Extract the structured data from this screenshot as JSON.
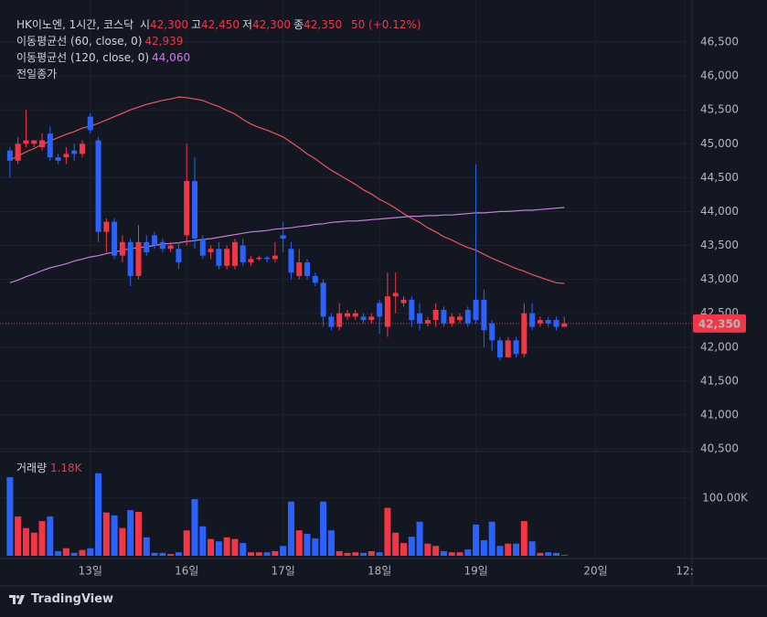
{
  "chart_data": {
    "type": "candlestick",
    "title": "HK이노엔, 1시간, 코스닥",
    "readout": [
      {
        "label": "시",
        "text": "42,300"
      },
      {
        "label": "고",
        "text": "42,450"
      },
      {
        "label": "저",
        "text": "42,300"
      },
      {
        "label": "종",
        "text": "42,350"
      }
    ],
    "change": "50 (+0.12%)",
    "open": [
      44900,
      44750,
      45000,
      45000,
      44950,
      45150,
      44800,
      44800,
      44900,
      44850,
      45400,
      45050,
      43700,
      43850,
      43350,
      43550,
      43050,
      43550,
      43650,
      43550,
      43450,
      43450,
      43650,
      44450,
      43600,
      43400,
      43450,
      43200,
      43200,
      43500,
      43250,
      43300,
      43320,
      43300,
      43650,
      43450,
      43050,
      43250,
      43050,
      42950,
      42450,
      42300,
      42450,
      42450,
      42450,
      42400,
      42650,
      42300,
      42750,
      42650,
      42700,
      42500,
      42350,
      42400,
      42550,
      42350,
      42400,
      42550,
      42700,
      42700,
      42350,
      42100,
      41850,
      42100,
      41900,
      42500,
      42350,
      42400,
      42400,
      42300
    ],
    "high": [
      44950,
      45100,
      45500,
      45050,
      45150,
      45250,
      44850,
      44950,
      45000,
      45050,
      45450,
      45100,
      43900,
      43900,
      43650,
      43600,
      43800,
      43650,
      43700,
      43600,
      43550,
      43550,
      45000,
      44800,
      43650,
      43500,
      43550,
      43500,
      43600,
      43600,
      43350,
      43350,
      43350,
      43550,
      43850,
      43550,
      43450,
      43300,
      43100,
      43000,
      42500,
      42650,
      42550,
      42550,
      42500,
      42500,
      42700,
      43100,
      43100,
      42750,
      42750,
      42650,
      42450,
      42650,
      42600,
      42500,
      42500,
      42600,
      44700,
      42850,
      42400,
      42150,
      42150,
      42150,
      42650,
      42650,
      42450,
      42450,
      42450,
      42450
    ],
    "low": [
      44500,
      44700,
      44950,
      44950,
      44900,
      44750,
      44700,
      44700,
      44750,
      44800,
      45150,
      43550,
      43400,
      43300,
      43250,
      42900,
      43000,
      43350,
      43450,
      43400,
      43400,
      43150,
      43500,
      43450,
      43300,
      43300,
      43150,
      43150,
      43150,
      43200,
      43200,
      43280,
      43250,
      43250,
      43400,
      43000,
      43000,
      43000,
      42900,
      42300,
      42250,
      42250,
      42400,
      42400,
      42350,
      42350,
      42200,
      42150,
      42500,
      42600,
      42300,
      42250,
      42300,
      42300,
      42300,
      42300,
      42350,
      42300,
      42350,
      42000,
      41950,
      41800,
      41850,
      41850,
      41850,
      42250,
      42300,
      42300,
      42250,
      42300
    ],
    "close": [
      44750,
      45000,
      45050,
      45050,
      45050,
      44800,
      44750,
      44850,
      44850,
      45000,
      45200,
      43700,
      43850,
      43350,
      43550,
      43050,
      43550,
      43400,
      43500,
      43450,
      43500,
      43250,
      44450,
      43600,
      43350,
      43450,
      43200,
      43450,
      43550,
      43250,
      43300,
      43320,
      43300,
      43350,
      43600,
      43100,
      43250,
      43050,
      42950,
      42450,
      42300,
      42500,
      42500,
      42500,
      42400,
      42450,
      42450,
      42750,
      42800,
      42700,
      42400,
      42350,
      42400,
      42550,
      42350,
      42450,
      42450,
      42350,
      42400,
      42250,
      42100,
      41850,
      42100,
      41900,
      42500,
      42300,
      42400,
      42350,
      42300,
      42350
    ],
    "up_color": "#f23645",
    "down_color": "#2962ff",
    "series": [
      {
        "name": "이동평균선 (60, close, 0)",
        "color": "#f0545c",
        "value_label": "42,939",
        "values": [
          44760,
          44820,
          44880,
          44930,
          44990,
          45040,
          45090,
          45140,
          45180,
          45230,
          45260,
          45300,
          45350,
          45400,
          45450,
          45500,
          45540,
          45580,
          45610,
          45640,
          45660,
          45690,
          45680,
          45660,
          45640,
          45590,
          45550,
          45490,
          45440,
          45360,
          45290,
          45240,
          45200,
          45150,
          45100,
          45020,
          44940,
          44850,
          44780,
          44690,
          44610,
          44540,
          44470,
          44400,
          44320,
          44260,
          44180,
          44120,
          44050,
          43970,
          43900,
          43840,
          43760,
          43700,
          43630,
          43580,
          43520,
          43470,
          43430,
          43370,
          43310,
          43260,
          43210,
          43160,
          43120,
          43070,
          43030,
          42990,
          42950,
          42939
        ]
      },
      {
        "name": "이동평균선 (120, close, 0)",
        "color": "#c77dde",
        "value_label": "44,060",
        "values": [
          42950,
          42990,
          43040,
          43080,
          43130,
          43170,
          43200,
          43230,
          43270,
          43300,
          43330,
          43350,
          43380,
          43400,
          43430,
          43450,
          43470,
          43480,
          43500,
          43520,
          43530,
          43540,
          43560,
          43570,
          43590,
          43600,
          43620,
          43640,
          43660,
          43680,
          43700,
          43710,
          43720,
          43740,
          43750,
          43760,
          43780,
          43790,
          43810,
          43820,
          43840,
          43850,
          43860,
          43860,
          43870,
          43880,
          43890,
          43900,
          43910,
          43920,
          43930,
          43930,
          43940,
          43940,
          43950,
          43950,
          43960,
          43970,
          43980,
          43980,
          43990,
          44000,
          44000,
          44010,
          44020,
          44020,
          44030,
          44040,
          44050,
          44060
        ]
      }
    ],
    "prev_close_label": "전일종가",
    "last_price": {
      "value": 42350,
      "label": "42,350"
    },
    "ylim": [
      40474,
      47120
    ],
    "yticks": [
      {
        "value": 40500,
        "label": "40,500"
      },
      {
        "value": 41000,
        "label": "41,000"
      },
      {
        "value": 41500,
        "label": "41,500"
      },
      {
        "value": 42000,
        "label": "42,000"
      },
      {
        "value": 42500,
        "label": "42,500"
      },
      {
        "value": 43000,
        "label": "43,000"
      },
      {
        "value": 43500,
        "label": "43,500"
      },
      {
        "value": 44000,
        "label": "44,000"
      },
      {
        "value": 44500,
        "label": "44,500"
      },
      {
        "value": 45000,
        "label": "45,000"
      },
      {
        "value": 45500,
        "label": "45,500"
      },
      {
        "value": 46000,
        "label": "46,000"
      },
      {
        "value": 46500,
        "label": "46,500"
      }
    ],
    "xlim": [
      -0.1,
      84.9
    ],
    "xticks": [
      {
        "value": 10,
        "label": "13일"
      },
      {
        "value": 22,
        "label": "16일"
      },
      {
        "value": 34,
        "label": "17일"
      },
      {
        "value": 46,
        "label": "18일"
      },
      {
        "value": 58,
        "label": "19일"
      },
      {
        "value": 72.9,
        "label": "20일"
      },
      {
        "value": 84,
        "label": "12:"
      }
    ],
    "grid": true,
    "volume": {
      "title": "거래량",
      "last_label": "1.18K",
      "values": [
        136000,
        68000,
        48000,
        40000,
        60000,
        68000,
        8000,
        13000,
        5000,
        10000,
        13000,
        143000,
        75000,
        70000,
        48000,
        79000,
        76000,
        32000,
        5000,
        5000,
        3000,
        6000,
        44000,
        98000,
        51000,
        29000,
        25000,
        32000,
        29000,
        22000,
        6000,
        6000,
        6000,
        8000,
        17000,
        94000,
        44000,
        38000,
        30000,
        94000,
        44000,
        8000,
        5000,
        6000,
        5000,
        8000,
        6000,
        83000,
        40000,
        22000,
        33000,
        59000,
        21000,
        17000,
        8000,
        6000,
        6000,
        11000,
        54000,
        27000,
        59000,
        17000,
        21000,
        21000,
        60000,
        25000,
        5000,
        6000,
        5000,
        1180
      ],
      "ylim": [
        0,
        179000
      ],
      "yticks": [
        {
          "value": 100000,
          "label": "100.00K"
        }
      ]
    },
    "brand": "TradingView"
  }
}
